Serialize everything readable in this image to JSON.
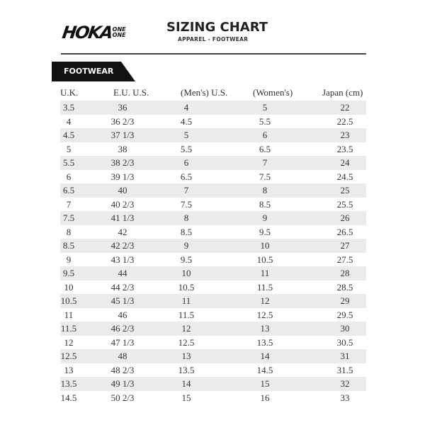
{
  "header": {
    "logo": "HOKA ONE ONE",
    "title": "SIZING CHART",
    "subtitle": "APPAREL - FOOTWEAR"
  },
  "section": {
    "label": "FOOTWEAR"
  },
  "table": {
    "columns": [
      "U.K.",
      "E.U.  U.S.",
      "(Men's) U.S.",
      "(Women's)",
      "Japan (cm)"
    ],
    "rows": [
      [
        "3.5",
        "36",
        "4",
        "5",
        "22"
      ],
      [
        "4",
        "36 2/3",
        "4.5",
        "5.5",
        "22.5"
      ],
      [
        "4.5",
        "37 1/3",
        "5",
        "6",
        "23"
      ],
      [
        "5",
        "38",
        "5.5",
        "6.5",
        "23.5"
      ],
      [
        "5.5",
        "38 2/3",
        "6",
        "7",
        "24"
      ],
      [
        "6",
        "39 1/3",
        "6.5",
        "7.5",
        "24.5"
      ],
      [
        "6.5",
        "40",
        "7",
        "8",
        "25"
      ],
      [
        "7",
        "40 2/3",
        "7.5",
        "8.5",
        "25.5"
      ],
      [
        "7.5",
        "41 1/3",
        "8",
        "9",
        "26"
      ],
      [
        "8",
        "42",
        "8.5",
        "9.5",
        "26.5"
      ],
      [
        "8.5",
        "42 2/3",
        "9",
        "10",
        "27"
      ],
      [
        "9",
        "43 1/3",
        "9.5",
        "10.5",
        "27.5"
      ],
      [
        "9.5",
        "44",
        "10",
        "11",
        "28"
      ],
      [
        "10",
        "44 2/3",
        "10.5",
        "11.5",
        "28.5"
      ],
      [
        "10.5",
        "45 1/3",
        "11",
        "12",
        "29"
      ],
      [
        "11",
        "46",
        "11.5",
        "12.5",
        "29.5"
      ],
      [
        "11.5",
        "46 2/3",
        "12",
        "13",
        "30"
      ],
      [
        "12",
        "47 1/3",
        "12.5",
        "13.5",
        "30.5"
      ],
      [
        "12.5",
        "48",
        "13",
        "14",
        "31"
      ],
      [
        "13",
        "48 2/3",
        "13.5",
        "14.5",
        "31.5"
      ],
      [
        "13.5",
        "49 1/3",
        "14",
        "15",
        "32"
      ],
      [
        "14.5",
        "50 2/3",
        "15",
        "16",
        "33"
      ]
    ]
  },
  "colors": {
    "stripe": "#ebebeb",
    "badge": "#111111",
    "text": "#333333"
  }
}
